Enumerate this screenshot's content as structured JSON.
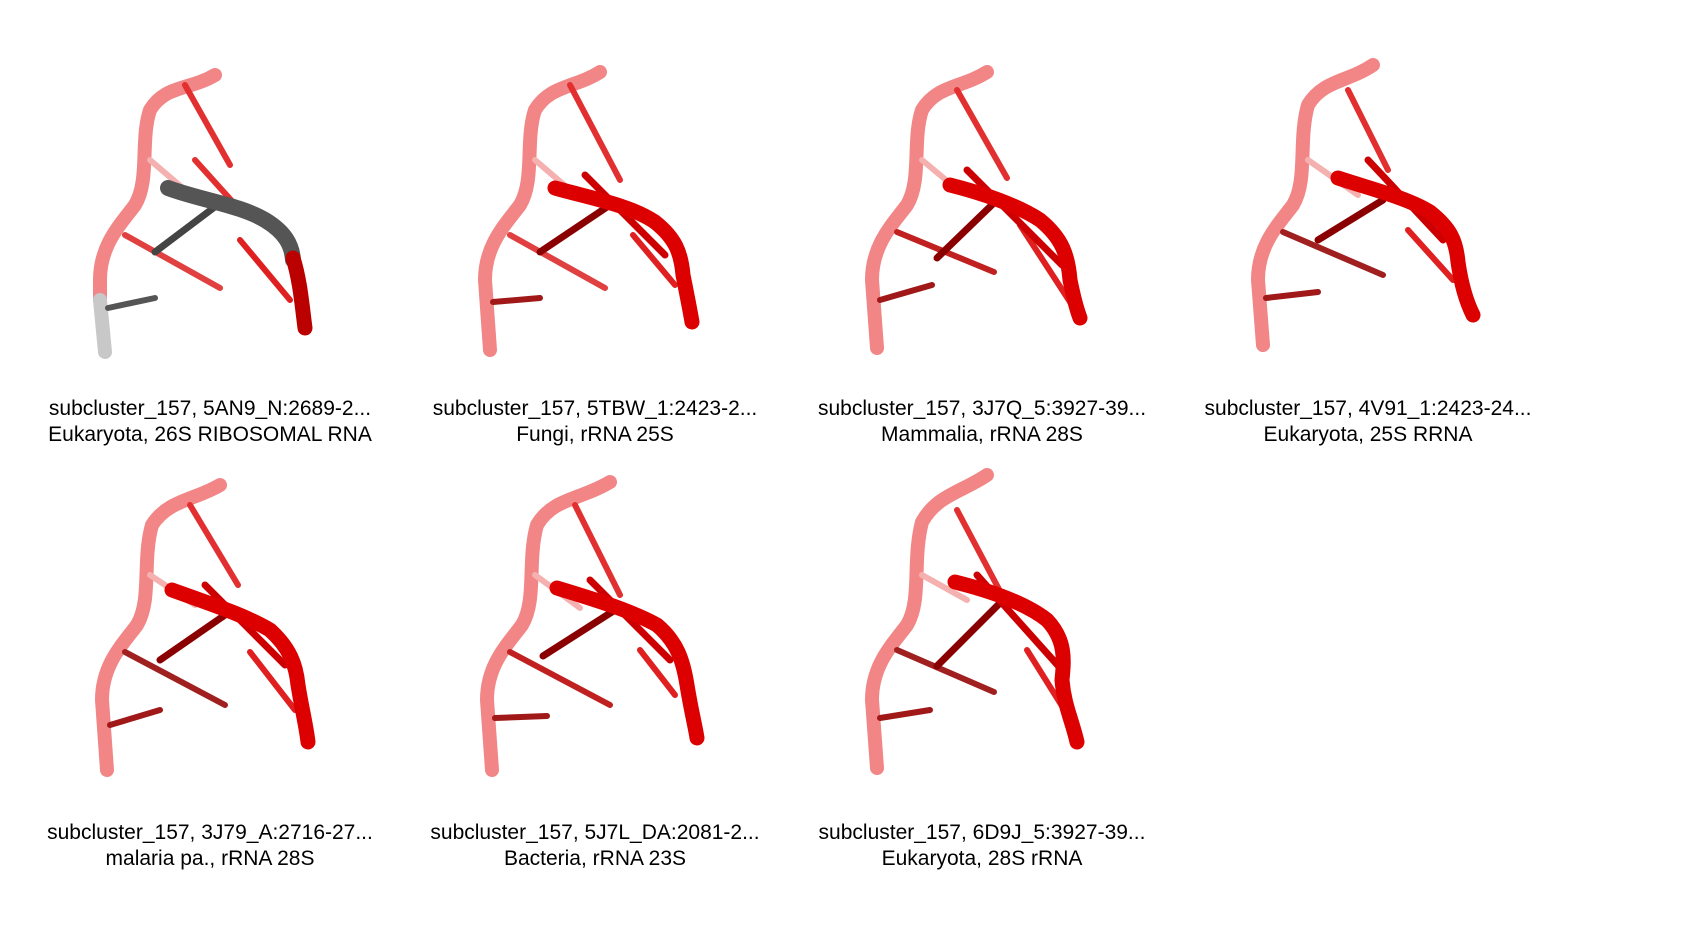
{
  "colors": {
    "strand_light": "#f07070",
    "strand_mid": "#e0a0a0",
    "strand_bright": "#dd0000",
    "strand_dark": "#aa0000",
    "highlight_gray": "#555555",
    "highlight_light": "#bbbbbb"
  },
  "panels": [
    {
      "id": "5AN9_N",
      "variant": "gray",
      "title": "subcluster_157, 5AN9_N:2689-2...",
      "subtitle": "Eukaryota, 26S RIBOSOMAL RNA"
    },
    {
      "id": "5TBW_1",
      "variant": "red",
      "title": "subcluster_157, 5TBW_1:2423-2...",
      "subtitle": "Fungi, rRNA 25S"
    },
    {
      "id": "3J7Q_5",
      "variant": "red",
      "title": "subcluster_157, 3J7Q_5:3927-39...",
      "subtitle": "Mammalia, rRNA 28S"
    },
    {
      "id": "4V91_1",
      "variant": "red",
      "title": "subcluster_157, 4V91_1:2423-24...",
      "subtitle": "Eukaryota, 25S RRNA"
    },
    {
      "id": "3J79_A",
      "variant": "red",
      "title": "subcluster_157, 3J79_A:2716-27...",
      "subtitle": "malaria pa., rRNA 28S"
    },
    {
      "id": "5J7L_DA",
      "variant": "red",
      "title": "subcluster_157, 5J7L_DA:2081-2...",
      "subtitle": "Bacteria, rRNA 23S"
    },
    {
      "id": "6D9J_5",
      "variant": "red",
      "title": "subcluster_157, 6D9J_5:3927-39...",
      "subtitle": "Eukaryota, 28S rRNA"
    }
  ]
}
